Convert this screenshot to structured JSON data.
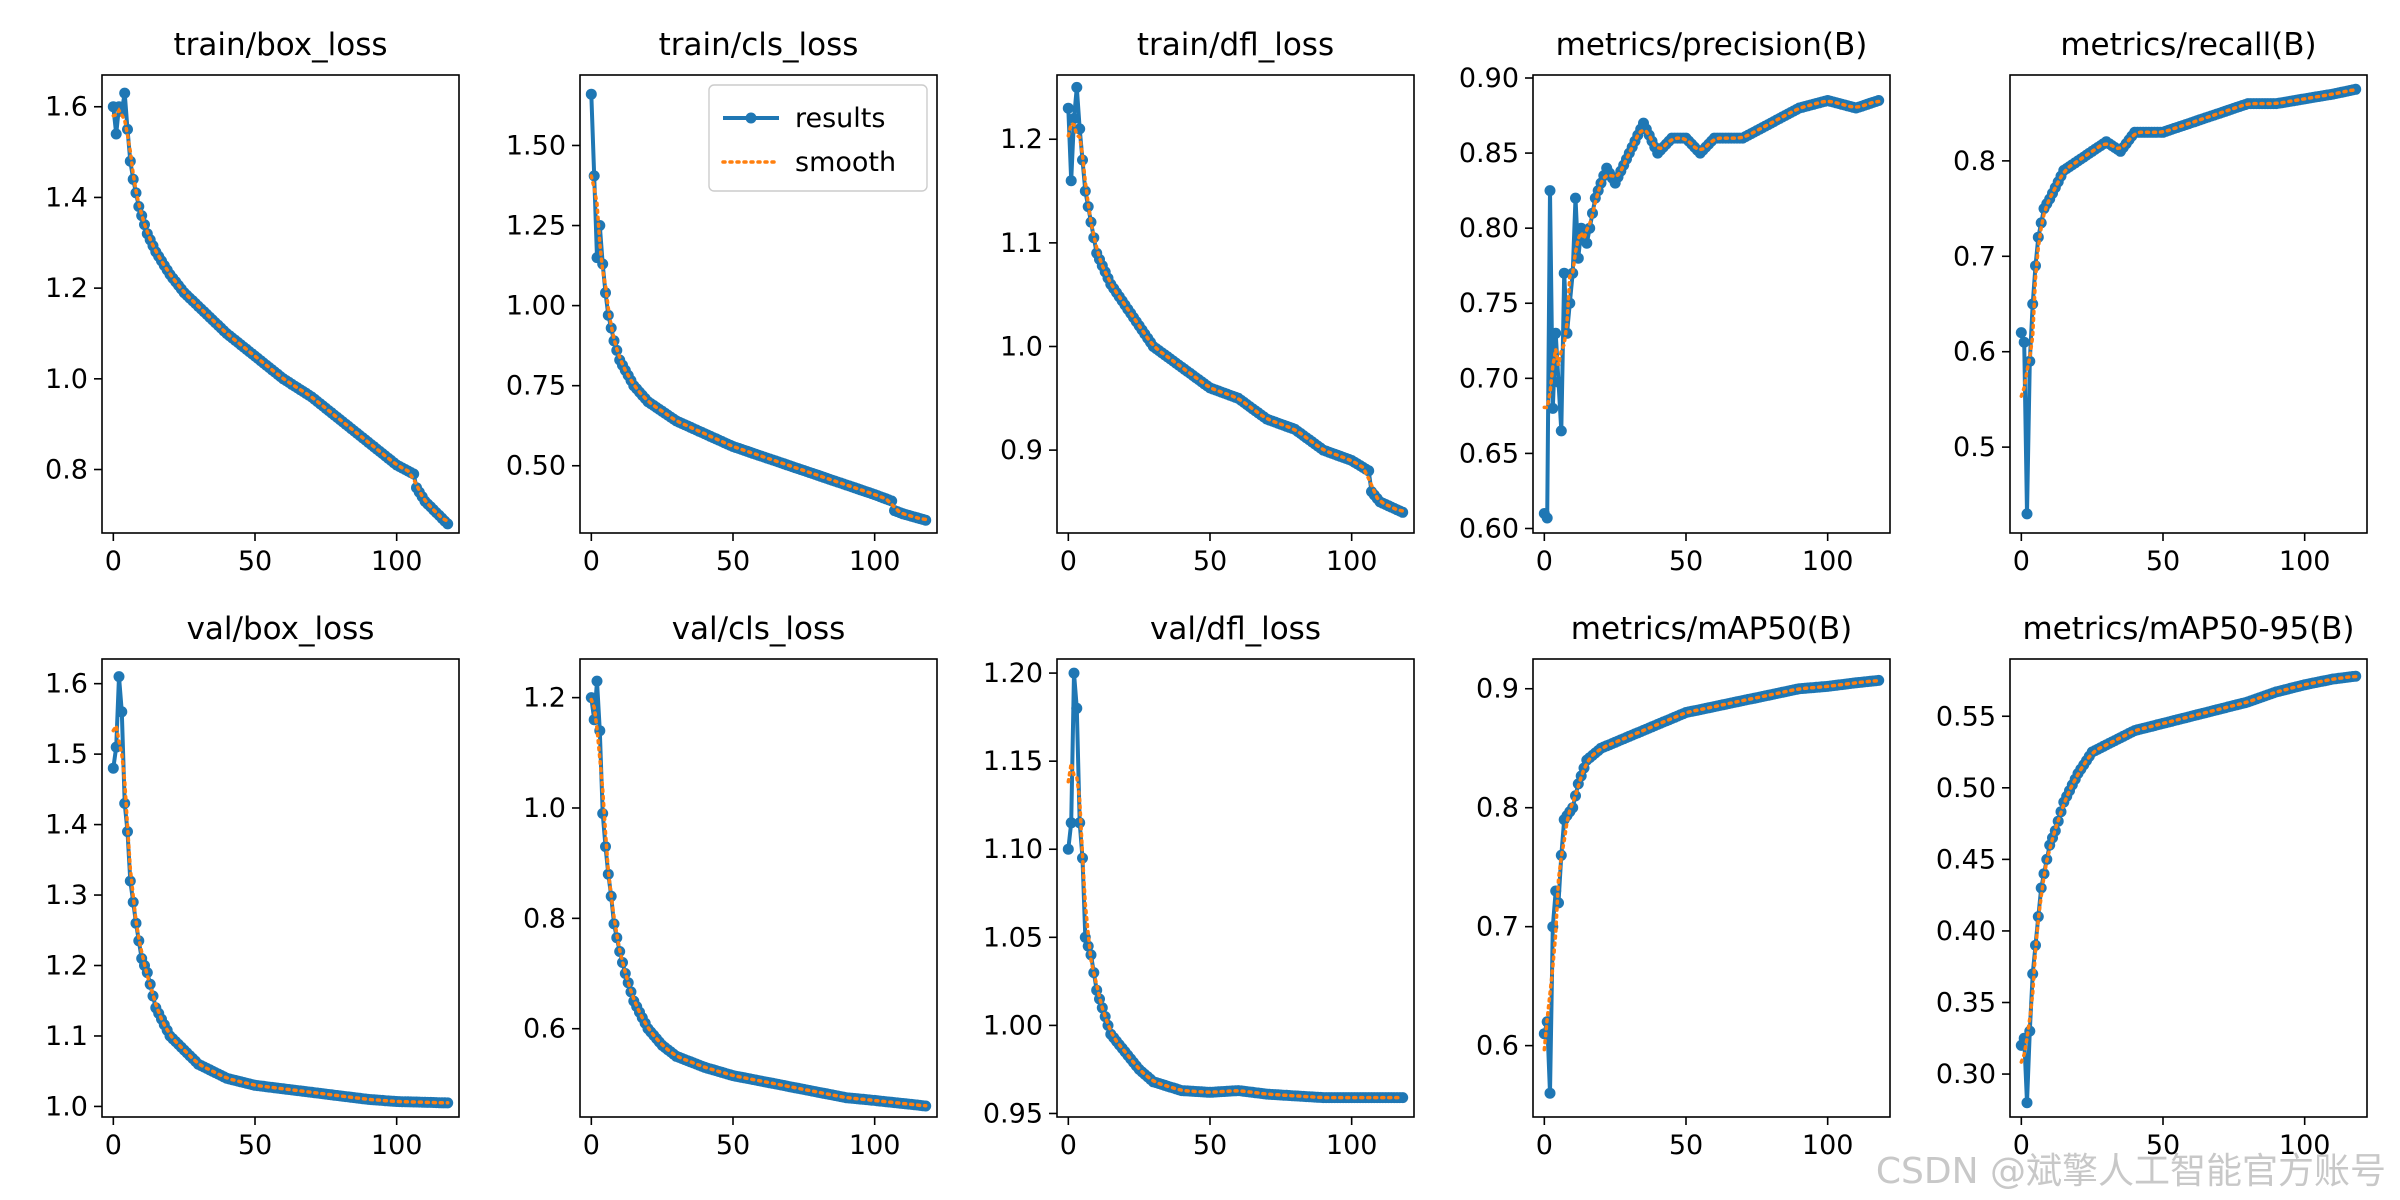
{
  "colors": {
    "results": "#1f77b4",
    "smooth": "#ff7f0e"
  },
  "legend": {
    "results": "results",
    "smooth": "smooth"
  },
  "watermark": "CSDN @斌擎人工智能官方账号",
  "chart_data": [
    {
      "type": "line",
      "title": "train/box_loss",
      "xlim": [
        -4,
        122
      ],
      "ylim": [
        0.66,
        1.67
      ],
      "xticks": [
        0,
        50,
        100
      ],
      "yticks": [
        0.8,
        1.0,
        1.2,
        1.4,
        1.6
      ],
      "ytick_labels": [
        "0.8",
        "1.0",
        "1.2",
        "1.4",
        "1.6"
      ],
      "anchors": [
        [
          0,
          1.6
        ],
        [
          1,
          1.54
        ],
        [
          2,
          1.6
        ],
        [
          3,
          1.59
        ],
        [
          4,
          1.63
        ],
        [
          5,
          1.55
        ],
        [
          6,
          1.48
        ],
        [
          7,
          1.44
        ],
        [
          9,
          1.38
        ],
        [
          12,
          1.32
        ],
        [
          15,
          1.28
        ],
        [
          20,
          1.23
        ],
        [
          25,
          1.19
        ],
        [
          30,
          1.16
        ],
        [
          40,
          1.1
        ],
        [
          50,
          1.05
        ],
        [
          60,
          1.0
        ],
        [
          70,
          0.96
        ],
        [
          80,
          0.91
        ],
        [
          90,
          0.86
        ],
        [
          100,
          0.81
        ],
        [
          106,
          0.79
        ],
        [
          107,
          0.76
        ],
        [
          110,
          0.73
        ],
        [
          118,
          0.68
        ]
      ]
    },
    {
      "type": "line",
      "title": "train/cls_loss",
      "xlim": [
        -4,
        122
      ],
      "ylim": [
        0.29,
        1.72
      ],
      "xticks": [
        0,
        50,
        100
      ],
      "yticks": [
        0.5,
        0.75,
        1.0,
        1.25,
        1.5
      ],
      "ytick_labels": [
        "0.50",
        "0.75",
        "1.00",
        "1.25",
        "1.50"
      ],
      "legend": "top-right",
      "anchors": [
        [
          0,
          1.66
        ],
        [
          2,
          1.15
        ],
        [
          3,
          1.25
        ],
        [
          4,
          1.13
        ],
        [
          5,
          1.04
        ],
        [
          6,
          0.97
        ],
        [
          8,
          0.89
        ],
        [
          10,
          0.83
        ],
        [
          15,
          0.75
        ],
        [
          20,
          0.7
        ],
        [
          30,
          0.64
        ],
        [
          40,
          0.6
        ],
        [
          50,
          0.56
        ],
        [
          60,
          0.53
        ],
        [
          70,
          0.5
        ],
        [
          80,
          0.47
        ],
        [
          90,
          0.44
        ],
        [
          100,
          0.41
        ],
        [
          106,
          0.39
        ],
        [
          107,
          0.36
        ],
        [
          110,
          0.35
        ],
        [
          118,
          0.33
        ]
      ]
    },
    {
      "type": "line",
      "title": "train/dfl_loss",
      "xlim": [
        -4,
        122
      ],
      "ylim": [
        0.82,
        1.262
      ],
      "xticks": [
        0,
        50,
        100
      ],
      "yticks": [
        0.9,
        1.0,
        1.1,
        1.2
      ],
      "ytick_labels": [
        "0.9",
        "1.0",
        "1.1",
        "1.2"
      ],
      "anchors": [
        [
          0,
          1.23
        ],
        [
          1,
          1.16
        ],
        [
          2,
          1.22
        ],
        [
          3,
          1.25
        ],
        [
          4,
          1.21
        ],
        [
          5,
          1.18
        ],
        [
          6,
          1.15
        ],
        [
          8,
          1.12
        ],
        [
          10,
          1.09
        ],
        [
          15,
          1.06
        ],
        [
          20,
          1.04
        ],
        [
          30,
          1.0
        ],
        [
          40,
          0.98
        ],
        [
          50,
          0.96
        ],
        [
          60,
          0.95
        ],
        [
          70,
          0.93
        ],
        [
          80,
          0.92
        ],
        [
          90,
          0.9
        ],
        [
          100,
          0.89
        ],
        [
          106,
          0.88
        ],
        [
          107,
          0.86
        ],
        [
          110,
          0.85
        ],
        [
          118,
          0.84
        ]
      ]
    },
    {
      "type": "line",
      "title": "metrics/precision(B)",
      "xlim": [
        -4,
        122
      ],
      "ylim": [
        0.597,
        0.902
      ],
      "xticks": [
        0,
        50,
        100
      ],
      "yticks": [
        0.6,
        0.65,
        0.7,
        0.75,
        0.8,
        0.85,
        0.9
      ],
      "ytick_labels": [
        "0.60",
        "0.65",
        "0.70",
        "0.75",
        "0.80",
        "0.85",
        "0.90"
      ],
      "anchors": [
        [
          0,
          0.61
        ],
        [
          1,
          0.607
        ],
        [
          2,
          0.825
        ],
        [
          3,
          0.68
        ],
        [
          4,
          0.73
        ],
        [
          6,
          0.665
        ],
        [
          7,
          0.77
        ],
        [
          8,
          0.73
        ],
        [
          10,
          0.77
        ],
        [
          11,
          0.82
        ],
        [
          12,
          0.78
        ],
        [
          13,
          0.8
        ],
        [
          15,
          0.79
        ],
        [
          18,
          0.82
        ],
        [
          22,
          0.84
        ],
        [
          25,
          0.83
        ],
        [
          30,
          0.85
        ],
        [
          35,
          0.87
        ],
        [
          40,
          0.85
        ],
        [
          45,
          0.86
        ],
        [
          50,
          0.86
        ],
        [
          55,
          0.85
        ],
        [
          60,
          0.86
        ],
        [
          70,
          0.86
        ],
        [
          80,
          0.87
        ],
        [
          90,
          0.88
        ],
        [
          100,
          0.885
        ],
        [
          110,
          0.88
        ],
        [
          118,
          0.885
        ]
      ]
    },
    {
      "type": "line",
      "title": "metrics/recall(B)",
      "xlim": [
        -4,
        122
      ],
      "ylim": [
        0.41,
        0.89
      ],
      "xticks": [
        0,
        50,
        100
      ],
      "yticks": [
        0.5,
        0.6,
        0.7,
        0.8
      ],
      "ytick_labels": [
        "0.5",
        "0.6",
        "0.7",
        "0.8"
      ],
      "anchors": [
        [
          0,
          0.62
        ],
        [
          1,
          0.61
        ],
        [
          2,
          0.43
        ],
        [
          3,
          0.59
        ],
        [
          4,
          0.65
        ],
        [
          5,
          0.69
        ],
        [
          6,
          0.72
        ],
        [
          8,
          0.75
        ],
        [
          10,
          0.76
        ],
        [
          15,
          0.79
        ],
        [
          20,
          0.8
        ],
        [
          25,
          0.81
        ],
        [
          30,
          0.82
        ],
        [
          35,
          0.81
        ],
        [
          40,
          0.83
        ],
        [
          50,
          0.83
        ],
        [
          60,
          0.84
        ],
        [
          70,
          0.85
        ],
        [
          80,
          0.86
        ],
        [
          90,
          0.86
        ],
        [
          100,
          0.865
        ],
        [
          110,
          0.87
        ],
        [
          118,
          0.875
        ]
      ]
    },
    {
      "type": "line",
      "title": "val/box_loss",
      "xlim": [
        -4,
        122
      ],
      "ylim": [
        0.985,
        1.635
      ],
      "xticks": [
        0,
        50,
        100
      ],
      "yticks": [
        1.0,
        1.1,
        1.2,
        1.3,
        1.4,
        1.5,
        1.6
      ],
      "ytick_labels": [
        "1.0",
        "1.1",
        "1.2",
        "1.3",
        "1.4",
        "1.5",
        "1.6"
      ],
      "anchors": [
        [
          0,
          1.48
        ],
        [
          1,
          1.51
        ],
        [
          2,
          1.61
        ],
        [
          3,
          1.56
        ],
        [
          4,
          1.43
        ],
        [
          5,
          1.39
        ],
        [
          6,
          1.32
        ],
        [
          7,
          1.29
        ],
        [
          8,
          1.26
        ],
        [
          10,
          1.21
        ],
        [
          12,
          1.19
        ],
        [
          15,
          1.14
        ],
        [
          20,
          1.1
        ],
        [
          25,
          1.08
        ],
        [
          30,
          1.06
        ],
        [
          40,
          1.04
        ],
        [
          50,
          1.03
        ],
        [
          60,
          1.025
        ],
        [
          70,
          1.02
        ],
        [
          80,
          1.015
        ],
        [
          90,
          1.01
        ],
        [
          100,
          1.007
        ],
        [
          118,
          1.005
        ]
      ]
    },
    {
      "type": "line",
      "title": "val/cls_loss",
      "xlim": [
        -4,
        122
      ],
      "ylim": [
        0.44,
        1.27
      ],
      "xticks": [
        0,
        50,
        100
      ],
      "yticks": [
        0.6,
        0.8,
        1.0,
        1.2
      ],
      "ytick_labels": [
        "0.6",
        "0.8",
        "1.0",
        "1.2"
      ],
      "anchors": [
        [
          0,
          1.2
        ],
        [
          1,
          1.16
        ],
        [
          2,
          1.23
        ],
        [
          3,
          1.14
        ],
        [
          4,
          0.99
        ],
        [
          5,
          0.93
        ],
        [
          6,
          0.88
        ],
        [
          7,
          0.84
        ],
        [
          8,
          0.79
        ],
        [
          10,
          0.74
        ],
        [
          12,
          0.7
        ],
        [
          15,
          0.65
        ],
        [
          20,
          0.6
        ],
        [
          25,
          0.57
        ],
        [
          30,
          0.55
        ],
        [
          40,
          0.53
        ],
        [
          50,
          0.515
        ],
        [
          60,
          0.505
        ],
        [
          70,
          0.495
        ],
        [
          80,
          0.485
        ],
        [
          90,
          0.475
        ],
        [
          100,
          0.47
        ],
        [
          118,
          0.46
        ]
      ]
    },
    {
      "type": "line",
      "title": "val/dfl_loss",
      "xlim": [
        -4,
        122
      ],
      "ylim": [
        0.948,
        1.208
      ],
      "xticks": [
        0,
        50,
        100
      ],
      "yticks": [
        0.95,
        1.0,
        1.05,
        1.1,
        1.15,
        1.2
      ],
      "ytick_labels": [
        "0.95",
        "1.00",
        "1.05",
        "1.10",
        "1.15",
        "1.20"
      ],
      "anchors": [
        [
          0,
          1.1
        ],
        [
          1,
          1.115
        ],
        [
          2,
          1.2
        ],
        [
          3,
          1.18
        ],
        [
          4,
          1.115
        ],
        [
          5,
          1.095
        ],
        [
          6,
          1.05
        ],
        [
          7,
          1.045
        ],
        [
          8,
          1.04
        ],
        [
          10,
          1.02
        ],
        [
          12,
          1.01
        ],
        [
          15,
          0.995
        ],
        [
          20,
          0.985
        ],
        [
          25,
          0.975
        ],
        [
          30,
          0.968
        ],
        [
          40,
          0.963
        ],
        [
          50,
          0.962
        ],
        [
          60,
          0.963
        ],
        [
          70,
          0.961
        ],
        [
          80,
          0.96
        ],
        [
          90,
          0.959
        ],
        [
          100,
          0.959
        ],
        [
          118,
          0.959
        ]
      ]
    },
    {
      "type": "line",
      "title": "metrics/mAP50(B)",
      "xlim": [
        -4,
        122
      ],
      "ylim": [
        0.54,
        0.925
      ],
      "xticks": [
        0,
        50,
        100
      ],
      "yticks": [
        0.6,
        0.7,
        0.8,
        0.9
      ],
      "ytick_labels": [
        "0.6",
        "0.7",
        "0.8",
        "0.9"
      ],
      "anchors": [
        [
          0,
          0.61
        ],
        [
          1,
          0.62
        ],
        [
          2,
          0.56
        ],
        [
          3,
          0.7
        ],
        [
          4,
          0.73
        ],
        [
          5,
          0.72
        ],
        [
          6,
          0.76
        ],
        [
          7,
          0.79
        ],
        [
          10,
          0.8
        ],
        [
          12,
          0.82
        ],
        [
          15,
          0.84
        ],
        [
          20,
          0.85
        ],
        [
          25,
          0.855
        ],
        [
          30,
          0.86
        ],
        [
          40,
          0.87
        ],
        [
          50,
          0.88
        ],
        [
          60,
          0.885
        ],
        [
          70,
          0.89
        ],
        [
          80,
          0.895
        ],
        [
          90,
          0.9
        ],
        [
          100,
          0.902
        ],
        [
          110,
          0.905
        ],
        [
          118,
          0.907
        ]
      ]
    },
    {
      "type": "line",
      "title": "metrics/mAP50-95(B)",
      "xlim": [
        -4,
        122
      ],
      "ylim": [
        0.27,
        0.59
      ],
      "xticks": [
        0,
        50,
        100
      ],
      "yticks": [
        0.3,
        0.35,
        0.4,
        0.45,
        0.5,
        0.55
      ],
      "ytick_labels": [
        "0.30",
        "0.35",
        "0.40",
        "0.45",
        "0.50",
        "0.55"
      ],
      "anchors": [
        [
          0,
          0.32
        ],
        [
          1,
          0.325
        ],
        [
          2,
          0.28
        ],
        [
          3,
          0.33
        ],
        [
          4,
          0.37
        ],
        [
          5,
          0.39
        ],
        [
          6,
          0.41
        ],
        [
          7,
          0.43
        ],
        [
          8,
          0.44
        ],
        [
          10,
          0.46
        ],
        [
          12,
          0.47
        ],
        [
          15,
          0.49
        ],
        [
          20,
          0.51
        ],
        [
          25,
          0.525
        ],
        [
          30,
          0.53
        ],
        [
          40,
          0.54
        ],
        [
          50,
          0.545
        ],
        [
          60,
          0.55
        ],
        [
          70,
          0.555
        ],
        [
          80,
          0.56
        ],
        [
          90,
          0.567
        ],
        [
          100,
          0.572
        ],
        [
          110,
          0.576
        ],
        [
          118,
          0.578
        ]
      ]
    }
  ]
}
